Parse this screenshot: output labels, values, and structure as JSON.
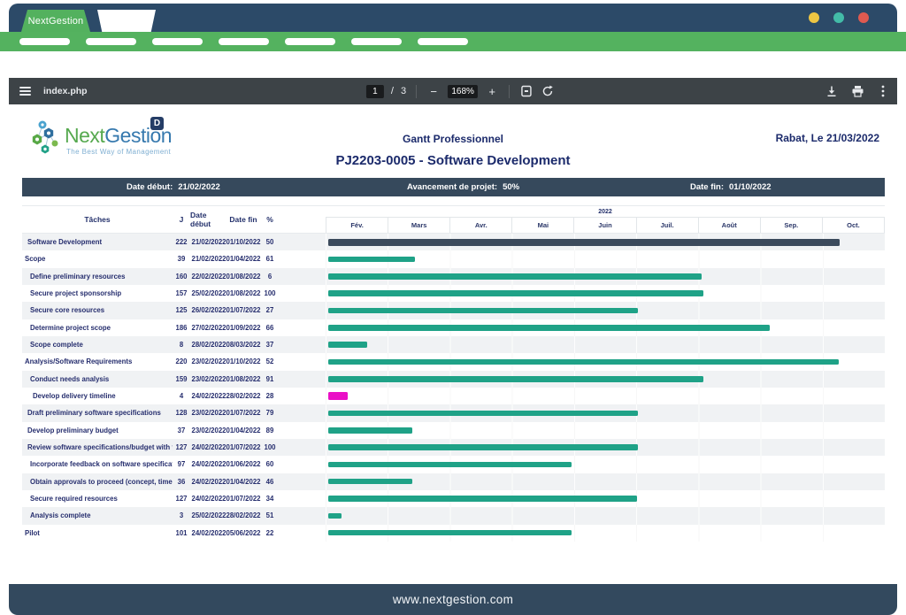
{
  "window": {
    "tab_title": "NextGestion",
    "traffic_lights": {
      "yellow": "#eec643",
      "teal": "#43bca8",
      "red": "#df5a50"
    }
  },
  "viewer": {
    "filename": "index.php",
    "page_current": "1",
    "page_separator": "/",
    "page_total": "3",
    "zoom_out_label": "−",
    "zoom_level": "168%",
    "zoom_in_label": "+",
    "icons": [
      "menu-icon",
      "fit-page-icon",
      "rotate-icon",
      "download-icon",
      "print-icon",
      "kebab-icon"
    ]
  },
  "doc": {
    "logo": {
      "name_part1": "Next",
      "name_part2": "Gestion",
      "tagline": "The Best Way of Management",
      "badge": "D"
    },
    "header": {
      "center_title": "Gantt Professionnel",
      "doc_title": "PJ2203-0005 - Software Development",
      "place_date": "Rabat, Le 21/03/2022"
    },
    "info_bar": {
      "start_label": "Date début:",
      "start_value": "21/02/2022",
      "progress_label": "Avancement de projet:",
      "progress_value": "50%",
      "end_label": "Date fin:",
      "end_value": "01/10/2022"
    },
    "footer": "www.nextgestion.com"
  },
  "chart_data": {
    "type": "gantt",
    "title": "PJ2203-0005 - Software Development",
    "year": "2022",
    "months": [
      "Fév.",
      "Mars",
      "Avr.",
      "Mai",
      "Juin",
      "Juil.",
      "Août",
      "Sep.",
      "Oct."
    ],
    "columns": [
      "Tâches",
      "J",
      "Date début",
      "Date fin",
      "%"
    ],
    "colors": {
      "bar_green": "#1fa287",
      "bar_dark": "#3b4a5c",
      "bar_magenta": "#ea10c6"
    },
    "tasks": [
      {
        "name": "Software Development",
        "j": "222",
        "start": "21/02/2022",
        "end": "01/10/2022",
        "pct": "50",
        "indent": 1,
        "bar_start": 0.004,
        "bar_end": 0.92,
        "color": "dark"
      },
      {
        "name": "Scope",
        "j": "39",
        "start": "21/02/2022",
        "end": "01/04/2022",
        "pct": "61",
        "indent": 0,
        "bar_start": 0.004,
        "bar_end": 0.16,
        "color": "green"
      },
      {
        "name": "Define preliminary resources",
        "j": "160",
        "start": "22/02/2022",
        "end": "01/08/2022",
        "pct": "6",
        "indent": 2,
        "bar_start": 0.004,
        "bar_end": 0.672,
        "color": "green"
      },
      {
        "name": "Secure project sponsorship",
        "j": "157",
        "start": "25/02/2022",
        "end": "01/08/2022",
        "pct": "100",
        "indent": 2,
        "bar_start": 0.004,
        "bar_end": 0.675,
        "color": "green"
      },
      {
        "name": "Secure core resources",
        "j": "125",
        "start": "26/02/2022",
        "end": "01/07/2022",
        "pct": "27",
        "indent": 2,
        "bar_start": 0.004,
        "bar_end": 0.558,
        "color": "green"
      },
      {
        "name": "Determine project scope",
        "j": "186",
        "start": "27/02/2022",
        "end": "01/09/2022",
        "pct": "66",
        "indent": 2,
        "bar_start": 0.004,
        "bar_end": 0.795,
        "color": "green"
      },
      {
        "name": "Scope complete",
        "j": "8",
        "start": "28/02/2022",
        "end": "08/03/2022",
        "pct": "37",
        "indent": 2,
        "bar_start": 0.004,
        "bar_end": 0.075,
        "color": "green"
      },
      {
        "name": "Analysis/Software Requirements",
        "j": "220",
        "start": "23/02/2022",
        "end": "01/10/2022",
        "pct": "52",
        "indent": 0,
        "bar_start": 0.004,
        "bar_end": 0.918,
        "color": "green"
      },
      {
        "name": "Conduct needs analysis",
        "j": "159",
        "start": "23/02/2022",
        "end": "01/08/2022",
        "pct": "91",
        "indent": 2,
        "bar_start": 0.004,
        "bar_end": 0.675,
        "color": "green"
      },
      {
        "name": "Develop delivery timeline",
        "j": "4",
        "start": "24/02/2022",
        "end": "28/02/2022",
        "pct": "28",
        "indent": 3,
        "bar_start": 0.004,
        "bar_end": 0.04,
        "color": "magenta"
      },
      {
        "name": "Draft preliminary software specifications",
        "j": "128",
        "start": "23/02/2022",
        "end": "01/07/2022",
        "pct": "79",
        "indent": 1,
        "bar_start": 0.004,
        "bar_end": 0.558,
        "color": "green"
      },
      {
        "name": "Develop preliminary budget",
        "j": "37",
        "start": "23/02/2022",
        "end": "01/04/2022",
        "pct": "89",
        "indent": 1,
        "bar_start": 0.004,
        "bar_end": 0.155,
        "color": "green"
      },
      {
        "name": "Review software specifications/budget with te...",
        "j": "127",
        "start": "24/02/2022",
        "end": "01/07/2022",
        "pct": "100",
        "indent": 1,
        "bar_start": 0.004,
        "bar_end": 0.558,
        "color": "green"
      },
      {
        "name": "Incorporate feedback on software specificatio...",
        "j": "97",
        "start": "24/02/2022",
        "end": "01/06/2022",
        "pct": "60",
        "indent": 2,
        "bar_start": 0.004,
        "bar_end": 0.44,
        "color": "green"
      },
      {
        "name": "Obtain approvals to proceed (concept, timelin...",
        "j": "36",
        "start": "24/02/2022",
        "end": "01/04/2022",
        "pct": "46",
        "indent": 2,
        "bar_start": 0.004,
        "bar_end": 0.155,
        "color": "green"
      },
      {
        "name": "Secure required resources",
        "j": "127",
        "start": "24/02/2022",
        "end": "01/07/2022",
        "pct": "34",
        "indent": 2,
        "bar_start": 0.004,
        "bar_end": 0.557,
        "color": "green"
      },
      {
        "name": "Analysis complete",
        "j": "3",
        "start": "25/02/2022",
        "end": "28/02/2022",
        "pct": "51",
        "indent": 2,
        "bar_start": 0.004,
        "bar_end": 0.028,
        "color": "green"
      },
      {
        "name": "Pilot",
        "j": "101",
        "start": "24/02/2022",
        "end": "05/06/2022",
        "pct": "22",
        "indent": 0,
        "bar_start": 0.004,
        "bar_end": 0.44,
        "color": "green"
      }
    ]
  }
}
